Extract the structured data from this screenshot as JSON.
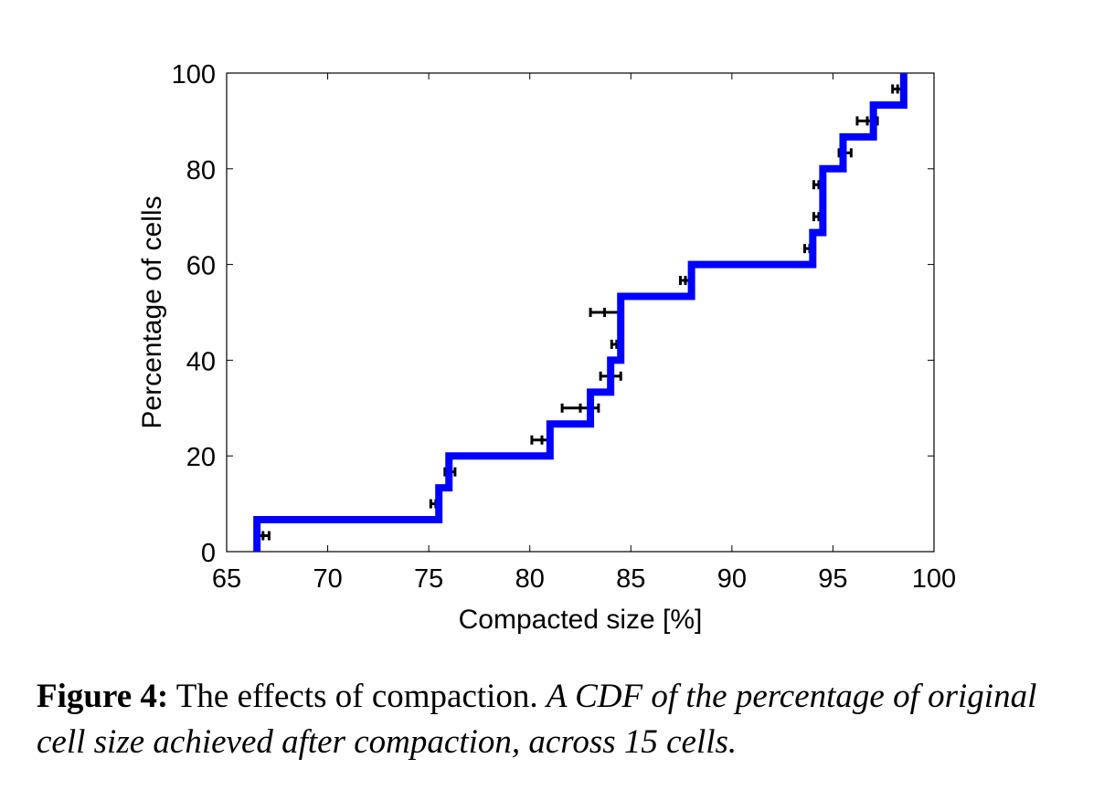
{
  "chart_data": {
    "type": "line",
    "step": true,
    "xlabel": "Compacted size [%]",
    "ylabel": "Percentage of cells",
    "xlim": [
      65,
      100
    ],
    "ylim": [
      0,
      100
    ],
    "xticks": [
      65,
      70,
      75,
      80,
      85,
      90,
      95,
      100
    ],
    "yticks": [
      0,
      20,
      40,
      60,
      80,
      100
    ],
    "grid": false,
    "series": [
      {
        "color": "#0000ff",
        "x": [
          66.5,
          75.5,
          76.0,
          81.0,
          83.0,
          84.0,
          84.5,
          88.0,
          94.0,
          94.5,
          95.5,
          97.0,
          98.5
        ],
        "y": [
          6.67,
          13.33,
          20.0,
          26.67,
          33.33,
          40.0,
          53.33,
          60.0,
          66.67,
          80.0,
          86.67,
          93.33,
          100.0
        ]
      }
    ],
    "error_bars": {
      "color": "#000000",
      "points": [
        {
          "x": 66.8,
          "y": 3.33,
          "xerr": 0.3
        },
        {
          "x": 75.35,
          "y": 10.0,
          "xerr": 0.25
        },
        {
          "x": 76.05,
          "y": 16.67,
          "xerr": 0.25
        },
        {
          "x": 80.6,
          "y": 23.33,
          "xerr": 0.5
        },
        {
          "x": 82.5,
          "y": 30.0,
          "xerr": 0.9
        },
        {
          "x": 84.0,
          "y": 36.67,
          "xerr": 0.5
        },
        {
          "x": 84.3,
          "y": 43.33,
          "xerr": 0.25
        },
        {
          "x": 83.7,
          "y": 50.0,
          "xerr": 0.7
        },
        {
          "x": 87.7,
          "y": 56.67,
          "xerr": 0.25
        },
        {
          "x": 93.85,
          "y": 63.33,
          "xerr": 0.25
        },
        {
          "x": 94.3,
          "y": 70.0,
          "xerr": 0.25
        },
        {
          "x": 94.3,
          "y": 76.67,
          "xerr": 0.25
        },
        {
          "x": 95.6,
          "y": 83.33,
          "xerr": 0.3
        },
        {
          "x": 96.7,
          "y": 90.0,
          "xerr": 0.5
        },
        {
          "x": 98.2,
          "y": 96.67,
          "xerr": 0.25
        }
      ]
    }
  },
  "caption": {
    "label": "Figure 4:",
    "text": " The effects of compaction. ",
    "detail": "A CDF of the percentage of original cell size achieved after compaction, across 15 cells."
  }
}
